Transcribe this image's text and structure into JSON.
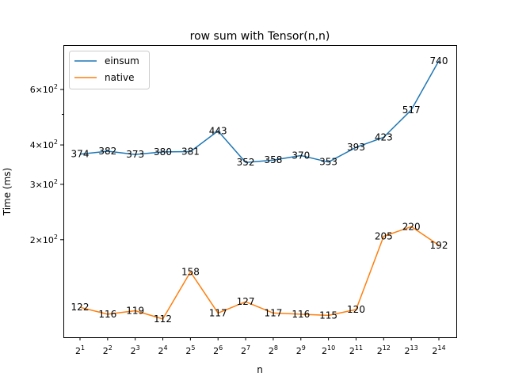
{
  "chart_data": {
    "type": "line",
    "title": "row sum with Tensor(n,n)",
    "xlabel": "n",
    "ylabel": "Time (ms)",
    "yscale": "log",
    "ylim": [
      98,
      830
    ],
    "x_base": "2",
    "x_exponents": [
      "1",
      "2",
      "3",
      "4",
      "5",
      "6",
      "7",
      "8",
      "9",
      "10",
      "11",
      "12",
      "13",
      "14"
    ],
    "y_ticks": [
      {
        "value": 200,
        "mantissa": "2",
        "base": "10",
        "exp": "2"
      },
      {
        "value": 300,
        "mantissa": "3",
        "base": "10",
        "exp": "2"
      },
      {
        "value": 400,
        "mantissa": "4",
        "base": "10",
        "exp": "2"
      },
      {
        "value": 600,
        "mantissa": "6",
        "base": "10",
        "exp": "2"
      }
    ],
    "y_minor_ticks": [
      500
    ],
    "legend_position": "top-left",
    "grid": false,
    "series": [
      {
        "name": "einsum",
        "color": "#1f77b4",
        "values": [
          374,
          382,
          373,
          380,
          381,
          443,
          352,
          358,
          370,
          353,
          393,
          423,
          517,
          740
        ],
        "labels": [
          "374",
          "382",
          "373",
          "380",
          "381",
          "443",
          "352",
          "358",
          "370",
          "353",
          "393",
          "423",
          "517",
          "740"
        ]
      },
      {
        "name": "native",
        "color": "#ff7f0e",
        "values": [
          122,
          116,
          119,
          112,
          158,
          117,
          127,
          117,
          116,
          115,
          120,
          205,
          220,
          192
        ],
        "labels": [
          "122",
          "116",
          "119",
          "112",
          "158",
          "117",
          "127",
          "117",
          "116",
          "115",
          "120",
          "205",
          "220",
          "192"
        ]
      }
    ]
  }
}
